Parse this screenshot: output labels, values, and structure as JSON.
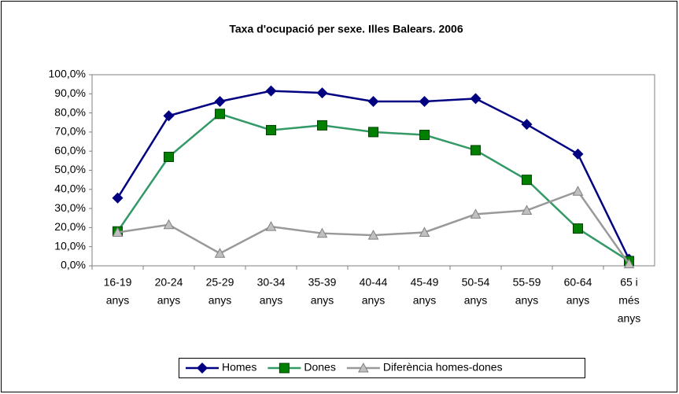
{
  "chart_data": {
    "type": "line",
    "title": "Taxa d'ocupació per sexe. Illes Balears. 2006",
    "categories": [
      [
        "16-19",
        "anys"
      ],
      [
        "20-24",
        "anys"
      ],
      [
        "25-29",
        "anys"
      ],
      [
        "30-34",
        "anys"
      ],
      [
        "35-39",
        "anys"
      ],
      [
        "40-44",
        "anys"
      ],
      [
        "45-49",
        "anys"
      ],
      [
        "50-54",
        "anys"
      ],
      [
        "55-59",
        "anys"
      ],
      [
        "60-64",
        "anys"
      ],
      [
        "65 i",
        "més",
        "anys"
      ]
    ],
    "series": [
      {
        "name": "Homes",
        "color": "#000080",
        "marker": "diamond",
        "values": [
          35.5,
          78.5,
          86,
          91.5,
          90.5,
          86,
          86,
          87.5,
          74,
          58.5,
          3.5
        ]
      },
      {
        "name": "Dones",
        "color": "#339966",
        "marker": "square",
        "values": [
          18,
          57,
          79.5,
          71,
          73.5,
          70,
          68.5,
          60.5,
          45,
          19.5,
          2.5
        ]
      },
      {
        "name": "Diferència homes-dones",
        "color": "#999999",
        "marker": "triangle",
        "values": [
          17.5,
          21.5,
          6.5,
          20.5,
          17,
          16,
          17.5,
          27,
          29,
          39,
          1
        ]
      }
    ],
    "ylim": [
      0,
      100
    ],
    "yticks": [
      {
        "value": 0,
        "label": "0,0%"
      },
      {
        "value": 10,
        "label": "10,0%"
      },
      {
        "value": 20,
        "label": "20,0%"
      },
      {
        "value": 30,
        "label": "30,0%"
      },
      {
        "value": 40,
        "label": "40,0%"
      },
      {
        "value": 50,
        "label": "50,0%"
      },
      {
        "value": 60,
        "label": "60,0%"
      },
      {
        "value": 70,
        "label": "70,0%"
      },
      {
        "value": 80,
        "label": "80,0%"
      },
      {
        "value": 90,
        "label": "90,0%"
      },
      {
        "value": 100,
        "label": "100,0%"
      }
    ],
    "legend": "bottom"
  }
}
